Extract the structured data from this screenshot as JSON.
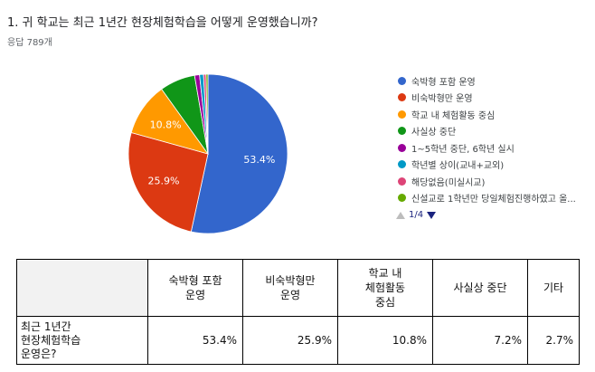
{
  "question": "1. 귀 학교는 최근 1년간 현장체험학습을 어떻게 운영했습니까?",
  "responses": "응답 789개",
  "chart_data": {
    "type": "pie",
    "categories": [
      "숙박형 포함 운영",
      "비숙박형만 운영",
      "학교 내 체험활동 중심",
      "사실상 중단",
      "1~5학년 중단, 6학년 실시",
      "학년별 상이(교내+교외)",
      "해당없음(미실시교)",
      "신설교로 1학년만 당일체험진행하였고 올..."
    ],
    "values": [
      53.4,
      25.9,
      10.8,
      7.2,
      1.0,
      0.8,
      0.5,
      0.4
    ],
    "data_labels": [
      "53.4%",
      "25.9%",
      "10.8%",
      "",
      "",
      "",
      "",
      ""
    ],
    "colors": [
      "#3366cc",
      "#dc3912",
      "#ff9900",
      "#109618",
      "#990099",
      "#0099c6",
      "#dd4477",
      "#66aa00"
    ],
    "legend_position": "right"
  },
  "pager": {
    "label": "1/4"
  },
  "table": {
    "headers": [
      "숙박형 포함\n운영",
      "비숙박형만\n운영",
      "학교 내\n체험활동\n중심",
      "사실상 중단",
      "기타"
    ],
    "row_label": "최근 1년간\n현장체험학습\n운영은?",
    "values": [
      "53.4%",
      "25.9%",
      "10.8%",
      "7.2%",
      "2.7%"
    ]
  }
}
